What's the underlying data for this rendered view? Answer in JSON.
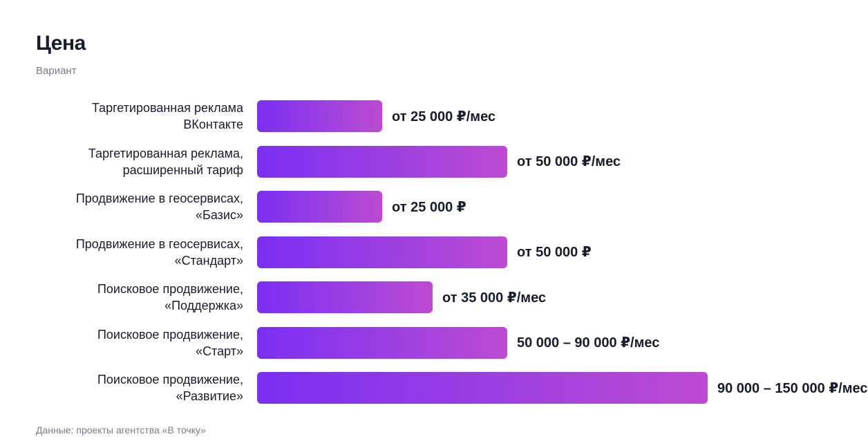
{
  "chart_data": {
    "type": "bar",
    "orientation": "horizontal",
    "title": "Цена",
    "subtitle": "Вариант",
    "source": "Данные: проекты агентства «В точку»",
    "categories": [
      "Таргетированная реклама\nВКонтакте",
      "Таргетированная реклама,\nрасширенный тариф",
      "Продвижение в геосервисах,\n«Базис»",
      "Продвижение в геосервисах,\n«Стандарт»",
      "Поисковое продвижение,\n«Поддержка»",
      "Поисковое продвижение,\n«Старт»",
      "Поисковое продвижение,\n«Развитие»"
    ],
    "values": [
      25000,
      50000,
      25000,
      50000,
      35000,
      50000,
      90000
    ],
    "value_labels": [
      "от 25 000 ₽/мес",
      "от 50 000 ₽/мес",
      "от 25 000 ₽",
      "от 50 000 ₽",
      "от 35 000 ₽/мес",
      "50 000 – 90 000 ₽/мес",
      "90 000 – 150 000 ₽/мес"
    ],
    "xlim": [
      0,
      90000
    ],
    "grid": false,
    "colors": {
      "bar_start": "#7b2ff2",
      "bar_end": "#bd4bd1"
    }
  }
}
